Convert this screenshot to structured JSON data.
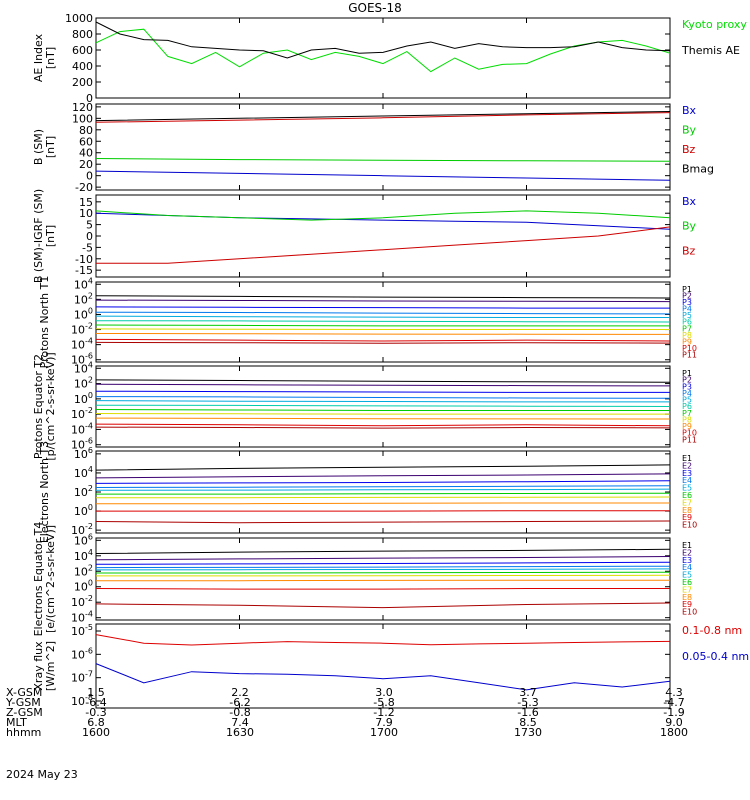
{
  "title": "GOES-18",
  "footer": {
    "rows": [
      {
        "key": "X-GSM",
        "values": [
          "1.5",
          "2.2",
          "3.0",
          "3.7",
          "4.3"
        ]
      },
      {
        "key": "Y-GSM",
        "values": [
          "-6.4",
          "-6.2",
          "-5.8",
          "-5.3",
          "-4.7"
        ]
      },
      {
        "key": "Z-GSM",
        "values": [
          "-0.3",
          "-0.8",
          "-1.2",
          "-1.6",
          "-1.9"
        ]
      },
      {
        "key": "MLT",
        "values": [
          "6.8",
          "7.4",
          "7.9",
          "8.5",
          "9.0"
        ]
      },
      {
        "key": "hhmm",
        "values": [
          "1600",
          "1630",
          "1700",
          "1730",
          "1800"
        ]
      }
    ],
    "date": "2024 May 23"
  },
  "chart_data": [
    {
      "type": "line",
      "ylabel": "AE Index [nT]",
      "ylim": [
        0,
        1000
      ],
      "yticks": [
        "0",
        "200",
        "400",
        "600",
        "800",
        "1000"
      ],
      "x": [
        1600,
        1605,
        1610,
        1615,
        1620,
        1625,
        1630,
        1635,
        1640,
        1645,
        1650,
        1655,
        1700,
        1705,
        1710,
        1715,
        1720,
        1725,
        1730,
        1735,
        1740,
        1745,
        1750,
        1755,
        1800
      ],
      "series": [
        {
          "name": "Kyoto proxy AE",
          "color": "#00dd00",
          "values": [
            690,
            830,
            860,
            520,
            430,
            570,
            390,
            560,
            600,
            480,
            570,
            520,
            430,
            580,
            330,
            500,
            360,
            420,
            430,
            550,
            650,
            700,
            720,
            650,
            560
          ]
        },
        {
          "name": "Themis AE",
          "color": "#000000",
          "values": [
            950,
            800,
            730,
            720,
            640,
            620,
            600,
            590,
            500,
            600,
            620,
            560,
            570,
            650,
            700,
            620,
            680,
            640,
            630,
            630,
            640,
            700,
            630,
            600,
            590
          ]
        }
      ]
    },
    {
      "type": "line",
      "ylabel": "B (SM) [nT]",
      "ylim": [
        -25,
        125
      ],
      "yticks": [
        "-20",
        "0",
        "20",
        "40",
        "60",
        "80",
        "100",
        "120"
      ],
      "x": [
        1600,
        1630,
        1700,
        1730,
        1800
      ],
      "series": [
        {
          "name": "Bx",
          "color": "#0000cc",
          "values": [
            8,
            4,
            0,
            -4,
            -8
          ]
        },
        {
          "name": "By",
          "color": "#00cc00",
          "values": [
            30,
            28,
            27,
            26,
            25
          ]
        },
        {
          "name": "Bz",
          "color": "#cc0000",
          "values": [
            93,
            97,
            101,
            106,
            110
          ]
        },
        {
          "name": "Bmag",
          "color": "#000000",
          "values": [
            96,
            100,
            104,
            108,
            112
          ]
        }
      ]
    },
    {
      "type": "line",
      "ylabel": "B (SM)-IGRF (SM) [nT]",
      "ylim": [
        -18,
        18
      ],
      "yticks": [
        "-15",
        "-10",
        "-5",
        "0",
        "5",
        "10",
        "15"
      ],
      "x": [
        1600,
        1615,
        1630,
        1645,
        1700,
        1715,
        1730,
        1745,
        1800
      ],
      "series": [
        {
          "name": "Bx",
          "color": "#0000cc",
          "values": [
            10,
            9,
            8,
            7.5,
            7,
            6.5,
            6,
            4.5,
            3
          ]
        },
        {
          "name": "By",
          "color": "#00cc00",
          "values": [
            11,
            9,
            8,
            7,
            8,
            10,
            11,
            10,
            8
          ]
        },
        {
          "name": "Bz",
          "color": "#cc0000",
          "values": [
            -12,
            -12,
            -10,
            -8,
            -6,
            -4,
            -2,
            0,
            4
          ]
        }
      ]
    },
    {
      "type": "line",
      "ylabel": "Protons North T1",
      "yscale": "log",
      "yticks": [
        "10^-6",
        "10^-4",
        "10^-2",
        "10^0",
        "10^2",
        "10^4"
      ],
      "x": [
        1600,
        1630,
        1700,
        1730,
        1800
      ],
      "series": [
        {
          "name": "P1",
          "color": "#000000",
          "values": [
            300,
            250,
            200,
            170,
            150
          ]
        },
        {
          "name": "P2",
          "color": "#3b0070",
          "values": [
            80,
            70,
            60,
            55,
            50
          ]
        },
        {
          "name": "P3",
          "color": "#0000ee",
          "values": [
            10,
            9,
            8,
            7,
            7
          ]
        },
        {
          "name": "P4",
          "color": "#0077ee",
          "values": [
            2,
            1.8,
            1.5,
            1.3,
            1.2
          ]
        },
        {
          "name": "P5",
          "color": "#00aadd",
          "values": [
            0.6,
            0.5,
            0.45,
            0.4,
            0.4
          ]
        },
        {
          "name": "P6",
          "color": "#00ccaa",
          "values": [
            0.15,
            0.14,
            0.12,
            0.11,
            0.1
          ]
        },
        {
          "name": "P7",
          "color": "#00cc00",
          "values": [
            0.04,
            0.035,
            0.03,
            0.03,
            0.03
          ]
        },
        {
          "name": "P8",
          "color": "#dddd00",
          "values": [
            0.012,
            0.011,
            0.01,
            0.01,
            0.01
          ]
        },
        {
          "name": "P9",
          "color": "#ff8800",
          "values": [
            0.003,
            0.0028,
            0.0025,
            0.0024,
            0.0023
          ]
        },
        {
          "name": "P10",
          "color": "#dd0000",
          "values": [
            0.0005,
            0.0004,
            0.0003,
            0.0004,
            0.0003
          ]
        },
        {
          "name": "P11",
          "color": "#aa0000",
          "values": [
            0.0002,
            0.00018,
            0.00015,
            0.00018,
            0.00016
          ]
        }
      ]
    },
    {
      "type": "line",
      "ylabel": "Protons Equator T2 [p/(cm^2-s-sr-keV)]",
      "yscale": "log",
      "yticks": [
        "10^-6",
        "10^-4",
        "10^-2",
        "10^0",
        "10^2",
        "10^4"
      ],
      "x": [
        1600,
        1630,
        1700,
        1730,
        1800
      ],
      "series": [
        {
          "name": "P1",
          "color": "#000000",
          "values": [
            300,
            250,
            200,
            170,
            150
          ]
        },
        {
          "name": "P2",
          "color": "#3b0070",
          "values": [
            80,
            70,
            60,
            55,
            50
          ]
        },
        {
          "name": "P3",
          "color": "#0000ee",
          "values": [
            10,
            9,
            8,
            7,
            7
          ]
        },
        {
          "name": "P4",
          "color": "#0077ee",
          "values": [
            2,
            1.8,
            1.5,
            1.3,
            1.2
          ]
        },
        {
          "name": "P5",
          "color": "#00aadd",
          "values": [
            0.6,
            0.5,
            0.45,
            0.4,
            0.4
          ]
        },
        {
          "name": "P6",
          "color": "#00ccaa",
          "values": [
            0.15,
            0.14,
            0.12,
            0.11,
            0.1
          ]
        },
        {
          "name": "P7",
          "color": "#00cc00",
          "values": [
            0.04,
            0.035,
            0.03,
            0.03,
            0.03
          ]
        },
        {
          "name": "P8",
          "color": "#dddd00",
          "values": [
            0.012,
            0.011,
            0.01,
            0.01,
            0.01
          ]
        },
        {
          "name": "P9",
          "color": "#ff8800",
          "values": [
            0.003,
            0.0028,
            0.0025,
            0.0024,
            0.0023
          ]
        },
        {
          "name": "P10",
          "color": "#dd0000",
          "values": [
            0.0005,
            0.0004,
            0.0003,
            0.0004,
            0.0003
          ]
        },
        {
          "name": "P11",
          "color": "#aa0000",
          "values": [
            0.0002,
            0.00018,
            0.00015,
            0.00018,
            0.00016
          ]
        }
      ]
    },
    {
      "type": "line",
      "ylabel": "Electrons North T3",
      "yscale": "log",
      "yticks": [
        "10^-2",
        "10^0",
        "10^2",
        "10^4",
        "10^6"
      ],
      "x": [
        1600,
        1630,
        1700,
        1730,
        1800
      ],
      "series": [
        {
          "name": "E1",
          "color": "#000000",
          "values": [
            20000,
            30000,
            40000,
            50000,
            70000
          ]
        },
        {
          "name": "E2",
          "color": "#3b0070",
          "values": [
            3000,
            4000,
            5000,
            6000,
            8000
          ]
        },
        {
          "name": "E3",
          "color": "#0000ee",
          "values": [
            800,
            900,
            1000,
            1200,
            1500
          ]
        },
        {
          "name": "E4",
          "color": "#0077ee",
          "values": [
            300,
            320,
            350,
            400,
            450
          ]
        },
        {
          "name": "E5",
          "color": "#00aadd",
          "values": [
            150,
            160,
            170,
            180,
            200
          ]
        },
        {
          "name": "E6",
          "color": "#00cc00",
          "values": [
            60,
            60,
            65,
            70,
            75
          ]
        },
        {
          "name": "E7",
          "color": "#dddd00",
          "values": [
            25,
            25,
            27,
            28,
            30
          ]
        },
        {
          "name": "E8",
          "color": "#ff8800",
          "values": [
            6,
            6,
            6.5,
            7,
            7
          ]
        },
        {
          "name": "E9",
          "color": "#dd0000",
          "values": [
            1,
            1,
            1,
            1.1,
            1.1
          ]
        },
        {
          "name": "E10",
          "color": "#aa0000",
          "values": [
            0.08,
            0.06,
            0.07,
            0.08,
            0.09
          ]
        }
      ]
    },
    {
      "type": "line",
      "ylabel": "Electrons Equator T4 [e/(cm^2-s-sr-keV)]",
      "yscale": "log",
      "yticks": [
        "10^-4",
        "10^-2",
        "10^0",
        "10^2",
        "10^4",
        "10^6"
      ],
      "x": [
        1600,
        1630,
        1700,
        1730,
        1800
      ],
      "series": [
        {
          "name": "E1",
          "color": "#000000",
          "values": [
            20000,
            30000,
            40000,
            50000,
            70000
          ]
        },
        {
          "name": "E2",
          "color": "#3b0070",
          "values": [
            3000,
            4000,
            5000,
            6000,
            8000
          ]
        },
        {
          "name": "E3",
          "color": "#0000ee",
          "values": [
            800,
            900,
            1000,
            1200,
            1500
          ]
        },
        {
          "name": "E4",
          "color": "#0077ee",
          "values": [
            300,
            320,
            350,
            400,
            450
          ]
        },
        {
          "name": "E5",
          "color": "#00aadd",
          "values": [
            150,
            160,
            170,
            180,
            200
          ]
        },
        {
          "name": "E6",
          "color": "#00cc00",
          "values": [
            60,
            60,
            65,
            70,
            75
          ]
        },
        {
          "name": "E7",
          "color": "#dddd00",
          "values": [
            25,
            25,
            27,
            28,
            30
          ]
        },
        {
          "name": "E8",
          "color": "#ff8800",
          "values": [
            6,
            6,
            6.5,
            7,
            7
          ]
        },
        {
          "name": "E9",
          "color": "#dd0000",
          "values": [
            0.6,
            0.5,
            0.5,
            0.6,
            0.6
          ]
        },
        {
          "name": "E10",
          "color": "#aa0000",
          "values": [
            0.006,
            0.004,
            0.002,
            0.005,
            0.008
          ]
        }
      ]
    },
    {
      "type": "line",
      "ylabel": "Xray flux [W/m^2]",
      "yscale": "log",
      "yticks": [
        "10^-8",
        "10^-7",
        "10^-6",
        "10^-5"
      ],
      "x": [
        1600,
        1610,
        1620,
        1630,
        1640,
        1650,
        1700,
        1710,
        1720,
        1730,
        1740,
        1750,
        1800
      ],
      "series": [
        {
          "name": "0.1-0.8 nm",
          "color": "#dd0000",
          "values": [
            7e-06,
            3e-06,
            2.5e-06,
            3e-06,
            3.5e-06,
            3.2e-06,
            3e-06,
            2.6e-06,
            2.8e-06,
            3e-06,
            3.2e-06,
            3.4e-06,
            3.6e-06
          ]
        },
        {
          "name": "0.05-0.4 nm",
          "color": "#0000cc",
          "values": [
            4e-07,
            6e-08,
            1.8e-07,
            1.5e-07,
            1.4e-07,
            1.2e-07,
            9e-08,
            1.2e-07,
            6e-08,
            3e-08,
            6e-08,
            4e-08,
            7e-08
          ]
        }
      ]
    }
  ]
}
